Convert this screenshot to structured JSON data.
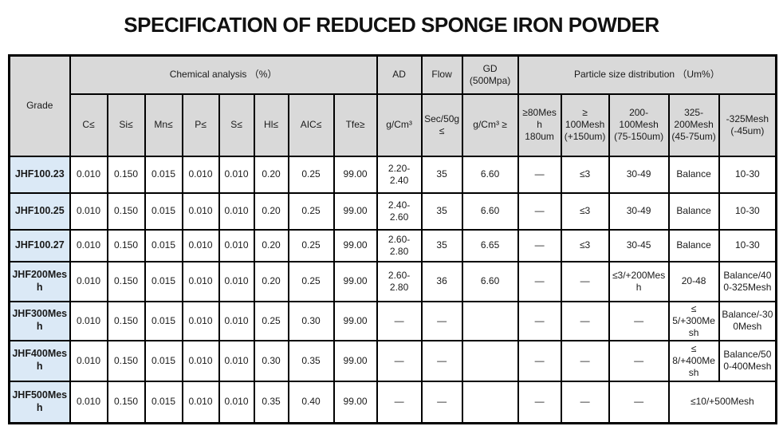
{
  "title": "SPECIFICATION OF REDUCED SPONGE IRON POWDER",
  "colors": {
    "header_bg": "#d9d9d9",
    "grade_bg": "#dbe9f6",
    "border": "#000000"
  },
  "table": {
    "grade_header": "Grade",
    "groups": {
      "chemical": "Chemical analysis （%）",
      "ad": "AD",
      "flow": "Flow",
      "gd": "GD\n(500Mpa)",
      "particle": "Particle size distribution （Um%）"
    },
    "subheaders": {
      "chemical": [
        "C≤",
        "Si≤",
        "Mn≤",
        "P≤",
        "S≤",
        "Hl≤",
        "AIC≤",
        "Tfe≥"
      ],
      "ad_unit": "g/Cm³",
      "flow_unit": "Sec/50g\n≤",
      "gd_unit": "g/Cm³ ≥",
      "particle": [
        "≥80Mesh\n180um",
        "≥\n100Mesh\n(+150um)",
        "200-\n100Mesh\n(75-150um)",
        "325-\n200Mesh\n(45-75um)",
        "-325Mesh\n(-45um)"
      ]
    },
    "rows": [
      {
        "grade": "JHF100.23",
        "cells": [
          "0.010",
          "0.150",
          "0.015",
          "0.010",
          "0.010",
          "0.20",
          "0.25",
          "99.00",
          "2.20-2.40",
          "35",
          "6.60",
          "—",
          "≤3",
          "30-49",
          "Balance",
          "10-30"
        ]
      },
      {
        "grade": "JHF100.25",
        "cells": [
          "0.010",
          "0.150",
          "0.015",
          "0.010",
          "0.010",
          "0.20",
          "0.25",
          "99.00",
          "2.40-2.60",
          "35",
          "6.60",
          "—",
          "≤3",
          "30-49",
          "Balance",
          "10-30"
        ]
      },
      {
        "grade": "JHF100.27",
        "cells": [
          "0.010",
          "0.150",
          "0.015",
          "0.010",
          "0.010",
          "0.20",
          "0.25",
          "99.00",
          "2.60-2.80",
          "35",
          "6.65",
          "—",
          "≤3",
          "30-45",
          "Balance",
          "10-30"
        ]
      },
      {
        "grade": "JHF200Mesh",
        "cells": [
          "0.010",
          "0.150",
          "0.015",
          "0.010",
          "0.010",
          "0.20",
          "0.25",
          "99.00",
          "2.60-2.80",
          "36",
          "6.60",
          "—",
          "—",
          "≤3/+200Mesh",
          "20-48",
          "Balance/400-325Mesh"
        ]
      },
      {
        "grade": "JHF300Mesh",
        "cells": [
          "0.010",
          "0.150",
          "0.015",
          "0.010",
          "0.010",
          "0.25",
          "0.30",
          "99.00",
          "—",
          "—",
          "",
          "—",
          "—",
          "—",
          "≤ 5/+300Mesh",
          "Balance/-300Mesh"
        ]
      },
      {
        "grade": "JHF400Mesh",
        "cells": [
          "0.010",
          "0.150",
          "0.015",
          "0.010",
          "0.010",
          "0.30",
          "0.35",
          "99.00",
          "—",
          "—",
          "",
          "—",
          "—",
          "—",
          "≤ 8/+400Mesh",
          "Balance/500-400Mesh"
        ]
      },
      {
        "grade": "JHF500Mesh",
        "cells": [
          "0.010",
          "0.150",
          "0.015",
          "0.010",
          "0.010",
          "0.35",
          "0.40",
          "99.00",
          "—",
          "—",
          "",
          "—",
          "—",
          "—",
          {
            "text": "≤10/+500Mesh",
            "colspan": 2
          }
        ]
      }
    ]
  }
}
